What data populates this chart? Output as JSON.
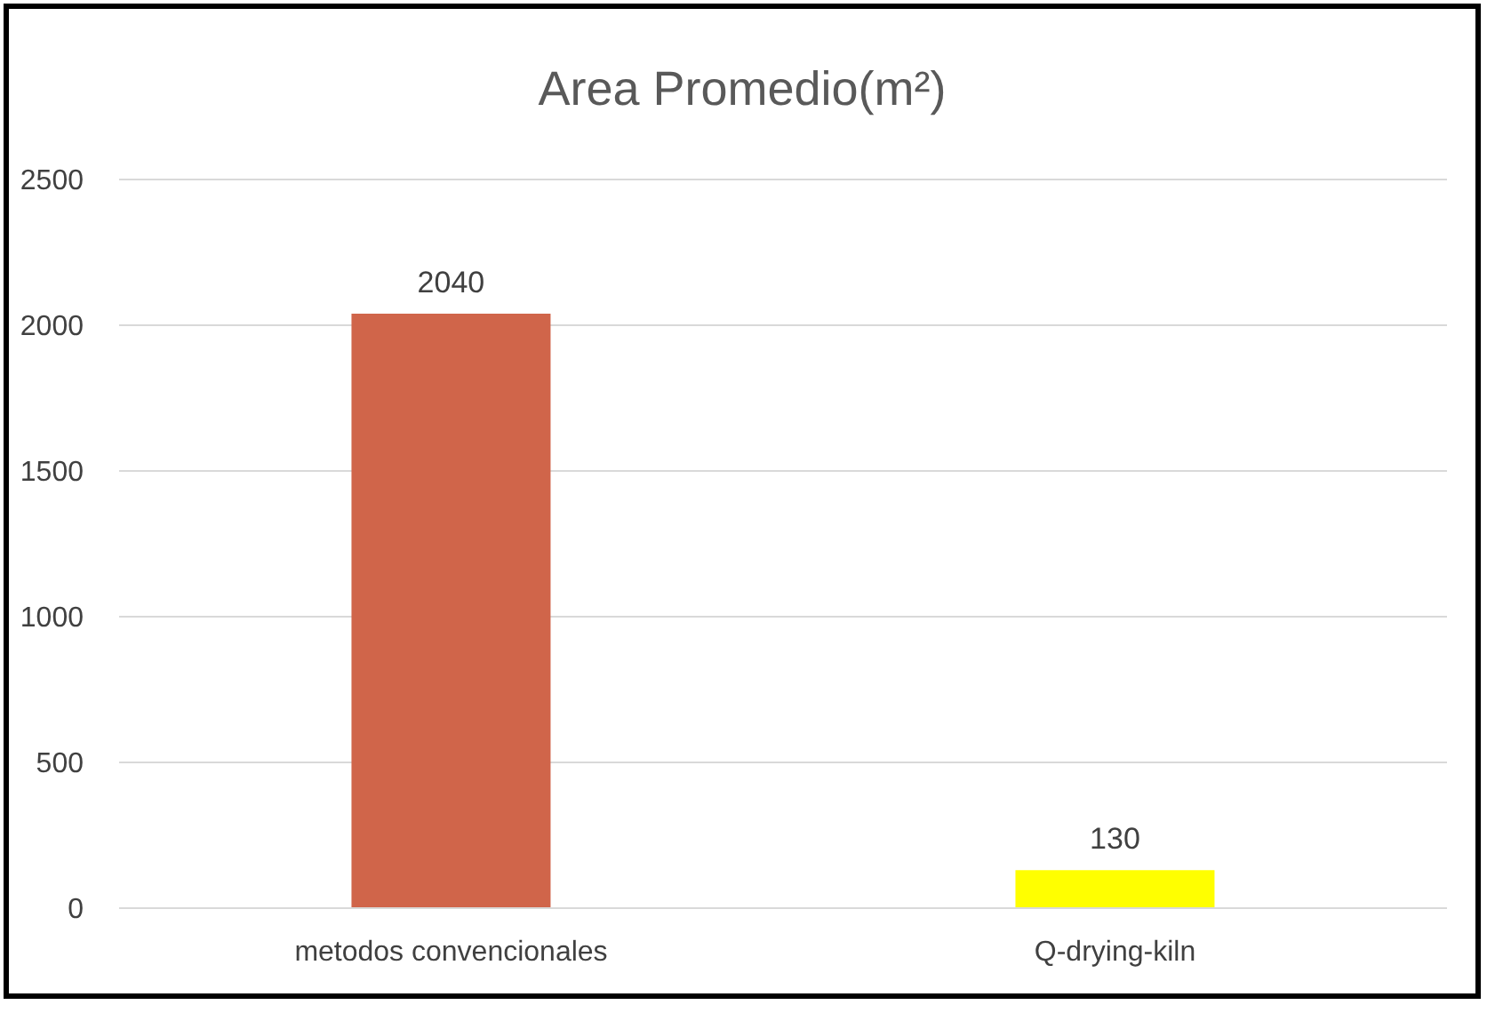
{
  "chart_data": {
    "type": "bar",
    "title": "Area Promedio(m²)",
    "categories": [
      "metodos convencionales",
      "Q-drying-kiln"
    ],
    "values": [
      2040,
      130
    ],
    "colors": [
      "#d0654a",
      "#ffff00"
    ],
    "ylim": [
      0,
      2500
    ],
    "yticks": [
      0,
      500,
      1000,
      1500,
      2000,
      2500
    ],
    "grid": "y",
    "data_labels": true
  }
}
